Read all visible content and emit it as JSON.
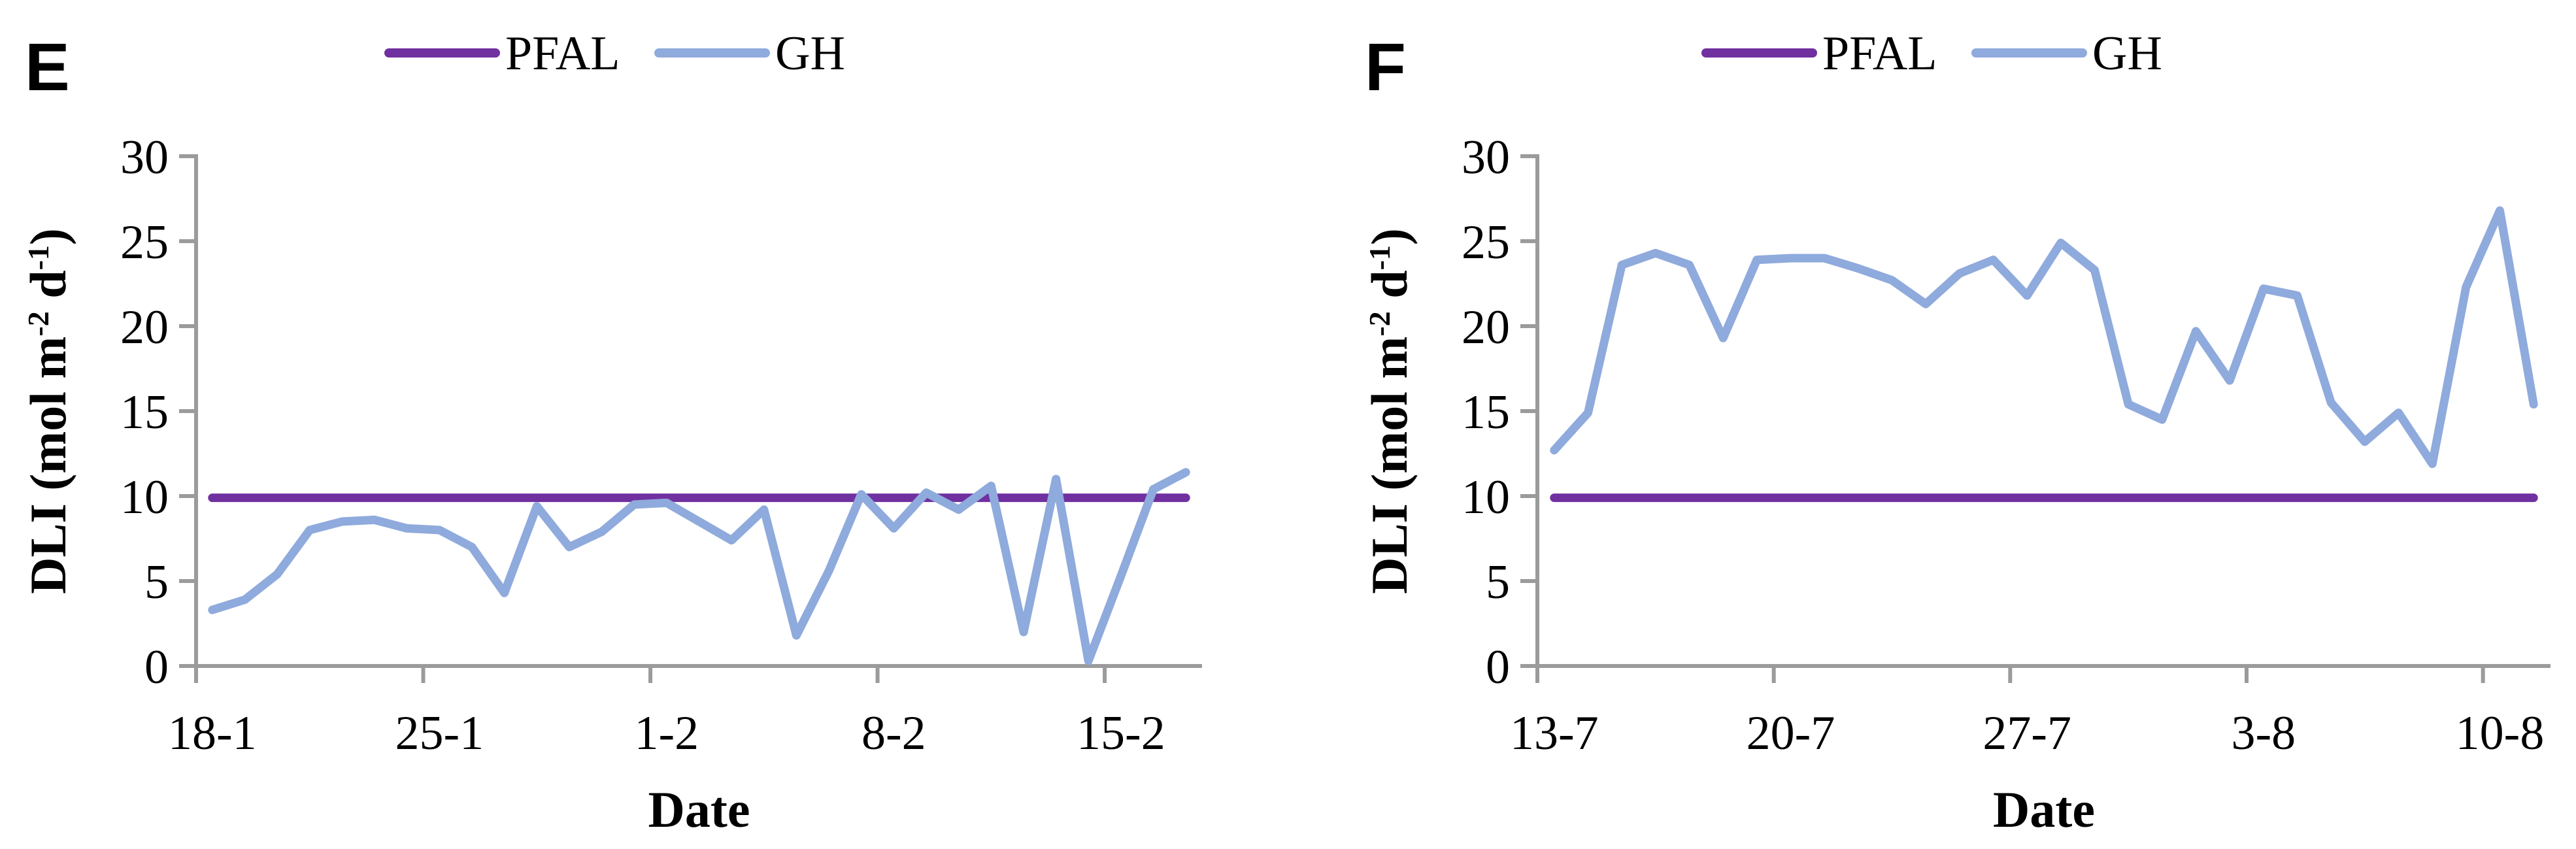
{
  "page": {
    "background": "#ffffff"
  },
  "axis_color": "#9B9B9B",
  "text_color": "#000000",
  "chart_data": [
    {
      "type": "line",
      "panel_label": "E",
      "xlabel": "Date",
      "ylabel": "DLI (mol m⁻² d⁻¹)",
      "ylabel_parts": [
        {
          "text": "DLI (mol m"
        },
        {
          "text": "-2",
          "sup": true
        },
        {
          "text": " d",
          "sup": false
        },
        {
          "text": "-1",
          "sup": true
        },
        {
          "text": ")",
          "sup": false
        }
      ],
      "ylim": [
        0,
        30
      ],
      "ytick_step": 5,
      "ytick_labels": [
        "0",
        "5",
        "10",
        "15",
        "20",
        "25",
        "30"
      ],
      "n_points": 31,
      "x_tick_labels": [
        "18-1",
        "25-1",
        "1-2",
        "8-2",
        "15-2"
      ],
      "x_tick_indices": [
        0,
        7,
        14,
        21,
        28
      ],
      "legend_position": "top",
      "grid": false,
      "series": [
        {
          "name": "PFAL",
          "color": "#7030A0",
          "constant": 9.9
        },
        {
          "name": "GH",
          "color": "#8FAADC",
          "values": [
            3.3,
            3.9,
            5.4,
            8.0,
            8.5,
            8.6,
            8.1,
            8.0,
            7.0,
            4.3,
            9.4,
            7.0,
            7.9,
            9.5,
            9.6,
            8.5,
            7.4,
            9.2,
            1.8,
            5.6,
            10.1,
            8.1,
            10.2,
            9.2,
            10.6,
            2.0,
            11.0,
            0.3,
            5.3,
            10.4,
            11.4
          ]
        }
      ]
    },
    {
      "type": "line",
      "panel_label": "F",
      "xlabel": "Date",
      "ylabel": "DLI (mol m⁻² d⁻¹)",
      "ylabel_parts": [
        {
          "text": "DLI (mol m"
        },
        {
          "text": "-2",
          "sup": true
        },
        {
          "text": " d",
          "sup": false
        },
        {
          "text": "-1",
          "sup": true
        },
        {
          "text": ")",
          "sup": false
        }
      ],
      "ylim": [
        0,
        30
      ],
      "ytick_step": 5,
      "ytick_labels": [
        "0",
        "5",
        "10",
        "15",
        "20",
        "25",
        "30"
      ],
      "n_points": 30,
      "x_tick_labels": [
        "13-7",
        "20-7",
        "27-7",
        "3-8",
        "10-8"
      ],
      "x_tick_indices": [
        0,
        7,
        14,
        21,
        28
      ],
      "legend_position": "top",
      "grid": false,
      "series": [
        {
          "name": "PFAL",
          "color": "#7030A0",
          "constant": 9.9
        },
        {
          "name": "GH",
          "color": "#8FAADC",
          "values": [
            12.7,
            14.9,
            23.6,
            24.3,
            23.6,
            19.3,
            23.9,
            24.0,
            24.0,
            23.4,
            22.7,
            21.3,
            23.1,
            23.9,
            21.8,
            24.9,
            23.3,
            15.4,
            14.5,
            19.7,
            16.8,
            22.2,
            21.8,
            15.5,
            13.2,
            14.9,
            11.9,
            22.3,
            26.8,
            15.4
          ]
        }
      ]
    }
  ]
}
